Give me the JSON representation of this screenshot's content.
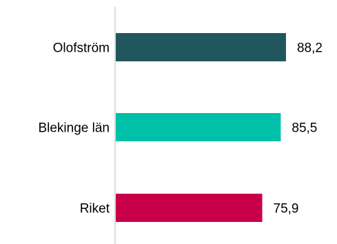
{
  "chart_data": {
    "type": "bar",
    "orientation": "horizontal",
    "categories": [
      "Olofström",
      "Blekinge län",
      "Riket"
    ],
    "values": [
      88.2,
      85.5,
      75.9
    ],
    "value_labels": [
      "88,2",
      "85,5",
      "75,9"
    ],
    "colors": [
      "#21565e",
      "#00c0aa",
      "#c8004a"
    ],
    "axis_color": "#d0d0d0",
    "title": "",
    "xlabel": "",
    "ylabel": "",
    "xlim": [
      0,
      100
    ],
    "grid": false,
    "legend": false
  }
}
